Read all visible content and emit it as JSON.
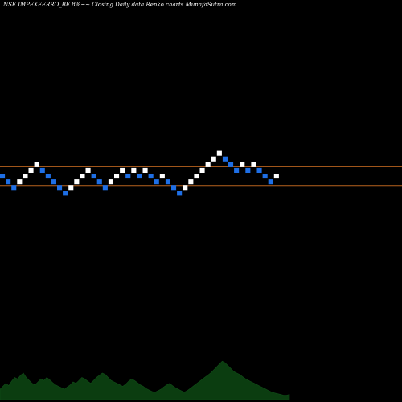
{
  "chart_data": {
    "type": "renko",
    "title": "NSE IMPEXFERRO_BE 8%~~ Closing Daily data Renko charts MunafaSutra.com",
    "colors": {
      "background": "#000000",
      "up_brick": "#ffffff",
      "down_brick": "#1e6fe6",
      "reference_line": "#b8621e",
      "volume_area": "#0b3d10",
      "volume_label": "#cfcfcf"
    },
    "reference_levels": [
      1,
      -2
    ],
    "bricks": [
      {
        "level": 0,
        "dir": "down"
      },
      {
        "level": -1,
        "dir": "down"
      },
      {
        "level": -2,
        "dir": "down"
      },
      {
        "level": -1,
        "dir": "up"
      },
      {
        "level": 0,
        "dir": "up"
      },
      {
        "level": 1,
        "dir": "up"
      },
      {
        "level": 2,
        "dir": "up"
      },
      {
        "level": 1,
        "dir": "down"
      },
      {
        "level": 0,
        "dir": "down"
      },
      {
        "level": -1,
        "dir": "down"
      },
      {
        "level": -2,
        "dir": "down"
      },
      {
        "level": -3,
        "dir": "down"
      },
      {
        "level": -2,
        "dir": "up"
      },
      {
        "level": -1,
        "dir": "up"
      },
      {
        "level": 0,
        "dir": "up"
      },
      {
        "level": 1,
        "dir": "up"
      },
      {
        "level": 0,
        "dir": "down"
      },
      {
        "level": -1,
        "dir": "down"
      },
      {
        "level": -2,
        "dir": "down"
      },
      {
        "level": -1,
        "dir": "up"
      },
      {
        "level": 0,
        "dir": "up"
      },
      {
        "level": 1,
        "dir": "up"
      },
      {
        "level": 0,
        "dir": "down"
      },
      {
        "level": 1,
        "dir": "up"
      },
      {
        "level": 0,
        "dir": "down"
      },
      {
        "level": 1,
        "dir": "up"
      },
      {
        "level": 0,
        "dir": "down"
      },
      {
        "level": -1,
        "dir": "down"
      },
      {
        "level": 0,
        "dir": "up"
      },
      {
        "level": -1,
        "dir": "down"
      },
      {
        "level": -2,
        "dir": "down"
      },
      {
        "level": -3,
        "dir": "down"
      },
      {
        "level": -2,
        "dir": "up"
      },
      {
        "level": -1,
        "dir": "up"
      },
      {
        "level": 0,
        "dir": "up"
      },
      {
        "level": 1,
        "dir": "up"
      },
      {
        "level": 2,
        "dir": "up"
      },
      {
        "level": 3,
        "dir": "up"
      },
      {
        "level": 4,
        "dir": "up"
      },
      {
        "level": 3,
        "dir": "down"
      },
      {
        "level": 2,
        "dir": "down"
      },
      {
        "level": 1,
        "dir": "down"
      },
      {
        "level": 2,
        "dir": "up"
      },
      {
        "level": 1,
        "dir": "down"
      },
      {
        "level": 2,
        "dir": "up"
      },
      {
        "level": 1,
        "dir": "down"
      },
      {
        "level": 0,
        "dir": "down"
      },
      {
        "level": -1,
        "dir": "down"
      },
      {
        "level": 0,
        "dir": "up"
      }
    ],
    "volume": [
      14,
      18,
      22,
      19,
      25,
      30,
      28,
      33,
      36,
      30,
      26,
      22,
      20,
      24,
      28,
      26,
      30,
      27,
      23,
      20,
      18,
      16,
      14,
      17,
      20,
      24,
      22,
      26,
      30,
      28,
      25,
      22,
      26,
      30,
      33,
      36,
      34,
      30,
      26,
      24,
      22,
      20,
      18,
      21,
      25,
      28,
      26,
      23,
      20,
      18,
      15,
      13,
      11,
      10,
      12,
      14,
      17,
      20,
      22,
      19,
      16,
      14,
      12,
      10,
      12,
      15,
      18,
      21,
      24,
      27,
      30,
      33,
      36,
      40,
      44,
      48,
      52,
      50,
      46,
      42,
      38,
      36,
      34,
      31,
      28,
      26,
      24,
      22,
      20,
      18,
      16,
      14,
      12,
      10,
      9,
      8,
      7,
      6,
      6,
      7
    ]
  }
}
